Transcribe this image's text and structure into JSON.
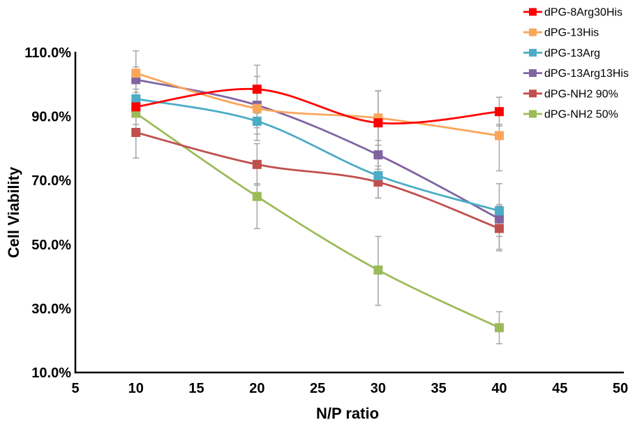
{
  "chart_data": {
    "type": "line",
    "title": "",
    "xlabel": "N/P ratio",
    "ylabel": "Cell Viability",
    "x": [
      10,
      20,
      30,
      40
    ],
    "xlim": [
      5,
      50
    ],
    "ylim": [
      10,
      110
    ],
    "xticks": [
      5,
      10,
      15,
      20,
      25,
      30,
      35,
      40,
      45,
      50
    ],
    "ytick_values": [
      110,
      90,
      70,
      50,
      30,
      10
    ],
    "ytick_labels": [
      "110.0%",
      "90.0%",
      "70.0%",
      "50.0%",
      "30.0%",
      "10.0%"
    ],
    "unit": "percent",
    "grid": false,
    "legend_position": "top-right",
    "marker": "square",
    "line_style": "smooth",
    "axis_color": "#000000",
    "error_bar_color": "#ababab",
    "series": [
      {
        "name": "dPG-8Arg30His",
        "color": "#ff0000",
        "values": [
          93,
          98.5,
          88,
          91.5
        ],
        "error_plus": [
          5.5,
          7.5,
          10,
          4.5
        ],
        "error_minus": [
          5.5,
          7.5,
          10,
          4.5
        ]
      },
      {
        "name": "dPG-13His",
        "color": "#f9a65b",
        "values": [
          103.5,
          92.5,
          89.5,
          84
        ],
        "error_plus": [
          7,
          6,
          8.5,
          3.5
        ],
        "error_minus": [
          7,
          6,
          8.5,
          11
        ]
      },
      {
        "name": "dPG-13Arg",
        "color": "#4bacc6",
        "values": [
          95.5,
          88.5,
          71.5,
          60.5
        ],
        "error_plus": [
          3,
          6,
          7,
          8.5
        ],
        "error_minus": [
          3,
          6,
          7,
          8
        ]
      },
      {
        "name": "dPG-13Arg13His",
        "color": "#8064a2",
        "values": [
          101.5,
          93.5,
          78,
          58
        ],
        "error_plus": [
          4,
          9,
          4.5,
          4.5
        ],
        "error_minus": [
          4,
          9,
          4.5,
          9.5
        ]
      },
      {
        "name": "dPG-NH2 90%",
        "color": "#c0504d",
        "values": [
          85,
          75,
          69.5,
          55
        ],
        "error_plus": [
          8,
          6.5,
          5,
          7
        ],
        "error_minus": [
          8,
          6.5,
          5,
          7
        ]
      },
      {
        "name": "dPG-NH2 50%",
        "color": "#9bbb59",
        "values": [
          91,
          65,
          42,
          24
        ],
        "error_plus": [
          5,
          4,
          10.5,
          5
        ],
        "error_minus": [
          5,
          10,
          11,
          5
        ]
      }
    ]
  }
}
